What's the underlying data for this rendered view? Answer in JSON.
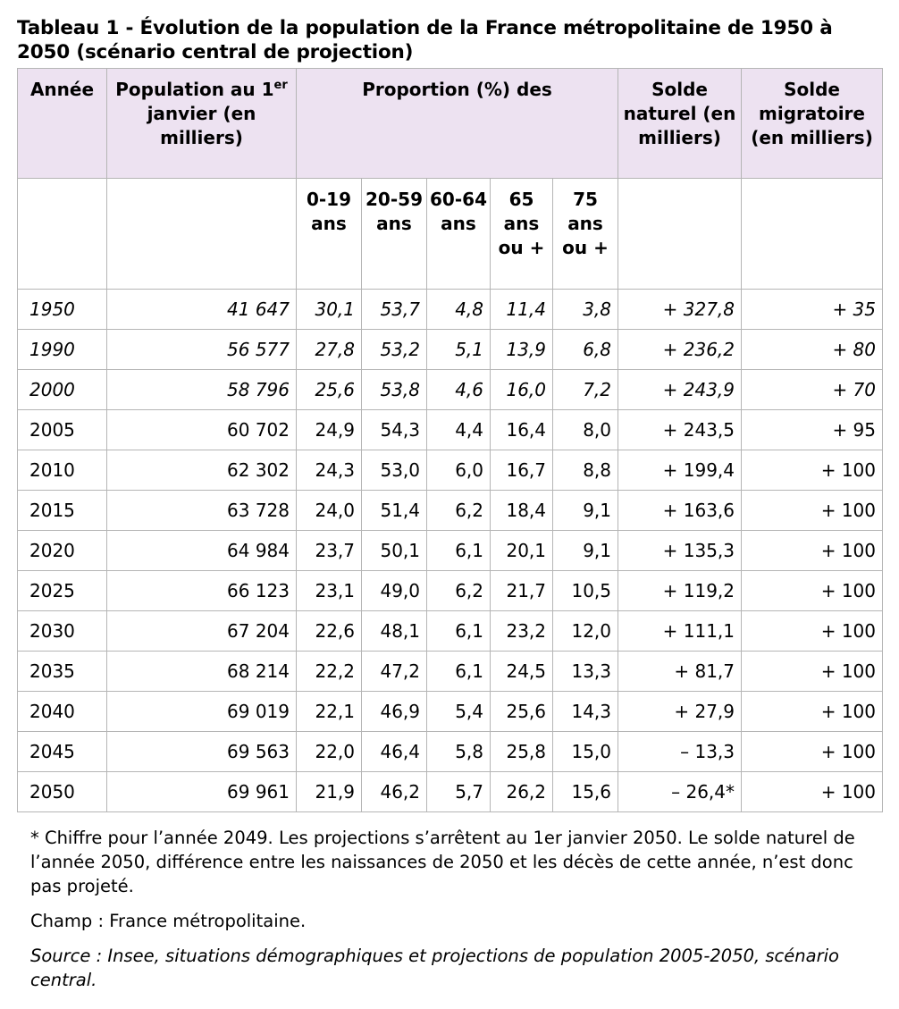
{
  "title": "Tableau 1 - Évolution de la population de la France métropolitaine de 1950 à 2050 (scénario central de projection)",
  "header": {
    "annee": "Année",
    "population_a": "Population au 1",
    "population_sup": "er",
    "population_b": " janvier (en milliers)",
    "proportion": "Proportion (%) des",
    "solde_naturel": "Solde naturel (en milliers)",
    "solde_migratoire": "Solde migratoire (en milliers)",
    "age_groups": [
      "0-19 ans",
      "20-59 ans",
      "60-64 ans",
      "65 ans ou +",
      "75 ans ou +"
    ]
  },
  "rows": [
    {
      "year": "1950",
      "population": "41 647",
      "p0_19": "30,1",
      "p20_59": "53,7",
      "p60_64": "4,8",
      "p65": "11,4",
      "p75": "3,8",
      "naturel": "+ 327,8",
      "migratoire": "+ 35"
    },
    {
      "year": "1990",
      "population": "56 577",
      "p0_19": "27,8",
      "p20_59": "53,2",
      "p60_64": "5,1",
      "p65": "13,9",
      "p75": "6,8",
      "naturel": "+ 236,2",
      "migratoire": "+ 80"
    },
    {
      "year": "2000",
      "population": "58 796",
      "p0_19": "25,6",
      "p20_59": "53,8",
      "p60_64": "4,6",
      "p65": "16,0",
      "p75": "7,2",
      "naturel": "+ 243,9",
      "migratoire": "+ 70"
    },
    {
      "year": "2005",
      "population": "60 702",
      "p0_19": "24,9",
      "p20_59": "54,3",
      "p60_64": "4,4",
      "p65": "16,4",
      "p75": "8,0",
      "naturel": "+ 243,5",
      "migratoire": "+ 95"
    },
    {
      "year": "2010",
      "population": "62 302",
      "p0_19": "24,3",
      "p20_59": "53,0",
      "p60_64": "6,0",
      "p65": "16,7",
      "p75": "8,8",
      "naturel": "+ 199,4",
      "migratoire": "+ 100"
    },
    {
      "year": "2015",
      "population": "63 728",
      "p0_19": "24,0",
      "p20_59": "51,4",
      "p60_64": "6,2",
      "p65": "18,4",
      "p75": "9,1",
      "naturel": "+ 163,6",
      "migratoire": "+ 100"
    },
    {
      "year": "2020",
      "population": "64 984",
      "p0_19": "23,7",
      "p20_59": "50,1",
      "p60_64": "6,1",
      "p65": "20,1",
      "p75": "9,1",
      "naturel": "+ 135,3",
      "migratoire": "+ 100"
    },
    {
      "year": "2025",
      "population": "66 123",
      "p0_19": "23,1",
      "p20_59": "49,0",
      "p60_64": "6,2",
      "p65": "21,7",
      "p75": "10,5",
      "naturel": "+ 119,2",
      "migratoire": "+ 100"
    },
    {
      "year": "2030",
      "population": "67 204",
      "p0_19": "22,6",
      "p20_59": "48,1",
      "p60_64": "6,1",
      "p65": "23,2",
      "p75": "12,0",
      "naturel": "+ 111,1",
      "migratoire": "+ 100"
    },
    {
      "year": "2035",
      "population": "68 214",
      "p0_19": "22,2",
      "p20_59": "47,2",
      "p60_64": "6,1",
      "p65": "24,5",
      "p75": "13,3",
      "naturel": "+ 81,7",
      "migratoire": "+ 100"
    },
    {
      "year": "2040",
      "population": "69 019",
      "p0_19": "22,1",
      "p20_59": "46,9",
      "p60_64": "5,4",
      "p65": "25,6",
      "p75": "14,3",
      "naturel": "+ 27,9",
      "migratoire": "+ 100"
    },
    {
      "year": "2045",
      "population": "69 563",
      "p0_19": "22,0",
      "p20_59": "46,4",
      "p60_64": "5,8",
      "p65": "25,8",
      "p75": "15,0",
      "naturel": "– 13,3",
      "migratoire": "+ 100"
    },
    {
      "year": "2050",
      "population": "69 961",
      "p0_19": "21,9",
      "p20_59": "46,2",
      "p60_64": "5,7",
      "p65": "26,2",
      "p75": "15,6",
      "naturel": "– 26,4*",
      "migratoire": "+ 100"
    }
  ],
  "notes": {
    "footnote": "* Chiffre pour l’année 2049. Les projections s’arrêtent au 1er janvier 2050. Le solde naturel de l’année 2050, différence entre les naissances de 2050 et les décès de cette année, n’est donc pas projeté.",
    "champ": "Champ : France métropolitaine.",
    "source": "Source : Insee, situations démographiques et projections de population 2005-2050, scénario central."
  },
  "colors": {
    "header_bg": "#ede2f1",
    "border": "#b5b5b5"
  }
}
